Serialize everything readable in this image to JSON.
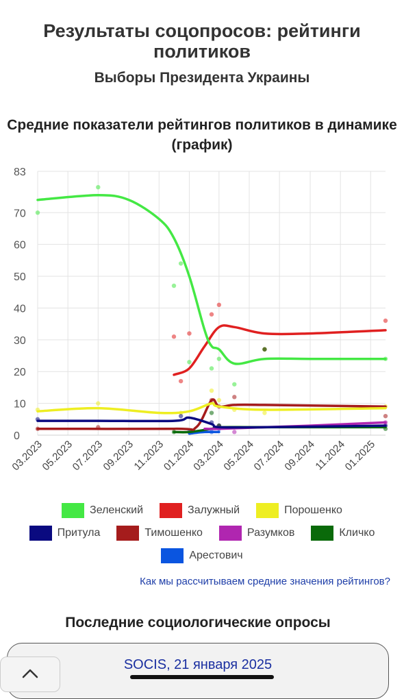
{
  "page": {
    "title": "Результаты соцопросов: рейтинги политиков",
    "subtitle": "Выборы Президента Украины",
    "section_title": "Средние показатели рейтингов политиков в динамике (график)",
    "method_link": "Как мы рассчитываем средние значения рейтингов?",
    "latest_title": "Последние социологические опросы",
    "latest_poll_link": "SOCIS, 21 января 2025"
  },
  "icons": {
    "scroll_top": "chevron-up-icon"
  },
  "chart_data": {
    "type": "line",
    "x_axis": "date",
    "x_ticks": [
      "03.2023",
      "05.2023",
      "07.2023",
      "09.2023",
      "11.2023",
      "01.2024",
      "03.2024",
      "05.2024",
      "07.2024",
      "09.2024",
      "11.2024",
      "01.2025"
    ],
    "y_ticks": [
      0,
      10,
      20,
      30,
      40,
      50,
      60,
      70,
      83
    ],
    "ylim": [
      0,
      83
    ],
    "grid": true,
    "legend_position": "bottom",
    "series": [
      {
        "name": "Зеленский",
        "color": "#44e844",
        "line": [
          [
            "2023-03-01",
            74
          ],
          [
            "2023-07-01",
            75.5
          ],
          [
            "2023-09-01",
            74
          ],
          [
            "2023-11-01",
            68
          ],
          [
            "2023-12-01",
            62
          ],
          [
            "2024-01-01",
            50
          ],
          [
            "2024-02-01",
            33
          ],
          [
            "2024-02-15",
            28
          ],
          [
            "2024-03-01",
            27
          ],
          [
            "2024-04-01",
            22.5
          ],
          [
            "2024-06-01",
            24
          ],
          [
            "2024-09-01",
            24
          ],
          [
            "2025-01-31",
            24
          ]
        ],
        "points": [
          [
            "2023-03-01",
            70
          ],
          [
            "2023-07-01",
            78
          ],
          [
            "2023-12-01",
            47
          ],
          [
            "2023-12-15",
            54
          ],
          [
            "2024-01-01",
            23
          ],
          [
            "2024-02-15",
            21
          ],
          [
            "2024-03-01",
            24
          ],
          [
            "2024-04-01",
            16
          ],
          [
            "2024-06-01",
            27
          ],
          [
            "2025-01-31",
            24
          ]
        ]
      },
      {
        "name": "Залужный",
        "color": "#e02020",
        "line": [
          [
            "2023-12-01",
            19
          ],
          [
            "2024-01-01",
            21
          ],
          [
            "2024-02-01",
            28
          ],
          [
            "2024-03-01",
            34
          ],
          [
            "2024-04-01",
            34
          ],
          [
            "2024-06-01",
            32
          ],
          [
            "2024-09-01",
            32
          ],
          [
            "2025-01-31",
            33
          ]
        ],
        "points": [
          [
            "2023-12-01",
            31
          ],
          [
            "2023-12-15",
            17
          ],
          [
            "2024-01-01",
            32
          ],
          [
            "2024-02-15",
            38
          ],
          [
            "2024-03-01",
            41
          ],
          [
            "2024-06-01",
            27
          ],
          [
            "2025-01-31",
            36
          ]
        ]
      },
      {
        "name": "Порошенко",
        "color": "#eeee22",
        "line": [
          [
            "2023-03-01",
            7.5
          ],
          [
            "2023-07-01",
            8.5
          ],
          [
            "2023-11-01",
            7
          ],
          [
            "2024-01-01",
            7.5
          ],
          [
            "2024-02-15",
            10
          ],
          [
            "2024-03-01",
            9
          ],
          [
            "2024-06-01",
            8
          ],
          [
            "2025-01-31",
            8.5
          ]
        ],
        "points": [
          [
            "2023-03-01",
            8
          ],
          [
            "2023-07-01",
            10
          ],
          [
            "2023-12-15",
            7
          ],
          [
            "2024-02-15",
            14
          ],
          [
            "2024-03-01",
            11
          ],
          [
            "2024-04-01",
            8
          ],
          [
            "2024-06-01",
            7
          ],
          [
            "2025-01-31",
            9
          ]
        ]
      },
      {
        "name": "Притула",
        "color": "#0a0a80",
        "line": [
          [
            "2023-03-01",
            4.5
          ],
          [
            "2023-07-01",
            4.5
          ],
          [
            "2023-12-01",
            4.5
          ],
          [
            "2024-01-01",
            5.5
          ],
          [
            "2024-02-15",
            3.5
          ],
          [
            "2024-03-01",
            2.5
          ],
          [
            "2024-06-01",
            2.5
          ],
          [
            "2025-01-31",
            3
          ]
        ],
        "points": [
          [
            "2023-03-01",
            5
          ],
          [
            "2023-12-15",
            6
          ],
          [
            "2024-02-15",
            4
          ],
          [
            "2024-03-01",
            3
          ],
          [
            "2025-01-31",
            3
          ]
        ]
      },
      {
        "name": "Тимошенко",
        "color": "#a51c1c",
        "line": [
          [
            "2023-03-01",
            2
          ],
          [
            "2023-12-01",
            2
          ],
          [
            "2024-01-15",
            2.5
          ],
          [
            "2024-02-15",
            11
          ],
          [
            "2024-03-01",
            9
          ],
          [
            "2024-04-01",
            9.5
          ],
          [
            "2024-06-01",
            9.5
          ],
          [
            "2025-01-31",
            9
          ]
        ],
        "points": [
          [
            "2023-03-01",
            2
          ],
          [
            "2023-07-01",
            2.5
          ],
          [
            "2024-02-15",
            11
          ],
          [
            "2024-03-01",
            9
          ],
          [
            "2024-04-01",
            12
          ],
          [
            "2025-01-31",
            6
          ]
        ]
      },
      {
        "name": "Разумков",
        "color": "#b026b0",
        "line": [
          [
            "2024-02-01",
            2
          ],
          [
            "2024-03-01",
            2
          ],
          [
            "2024-06-01",
            2.5
          ],
          [
            "2024-09-01",
            3
          ],
          [
            "2025-01-31",
            4
          ]
        ],
        "points": [
          [
            "2024-03-01",
            3
          ],
          [
            "2024-04-01",
            1
          ],
          [
            "2025-01-31",
            4
          ]
        ]
      },
      {
        "name": "Кличко",
        "color": "#0a6a0a",
        "line": [
          [
            "2023-12-01",
            1
          ],
          [
            "2024-01-01",
            1
          ],
          [
            "2024-02-15",
            2
          ],
          [
            "2024-03-01",
            2.5
          ],
          [
            "2024-06-01",
            2.5
          ],
          [
            "2025-01-31",
            2.5
          ]
        ],
        "points": [
          [
            "2023-12-01",
            1
          ],
          [
            "2024-02-15",
            7
          ],
          [
            "2024-03-01",
            3
          ],
          [
            "2024-06-01",
            27
          ],
          [
            "2025-01-31",
            2
          ]
        ]
      },
      {
        "name": "Арестович",
        "color": "#0a55e0",
        "line": [
          [
            "2024-01-01",
            0.5
          ],
          [
            "2024-02-01",
            1
          ],
          [
            "2024-03-01",
            1
          ]
        ],
        "points": [
          [
            "2024-01-01",
            1
          ],
          [
            "2024-02-15",
            1
          ],
          [
            "2024-03-01",
            2
          ]
        ]
      }
    ]
  }
}
